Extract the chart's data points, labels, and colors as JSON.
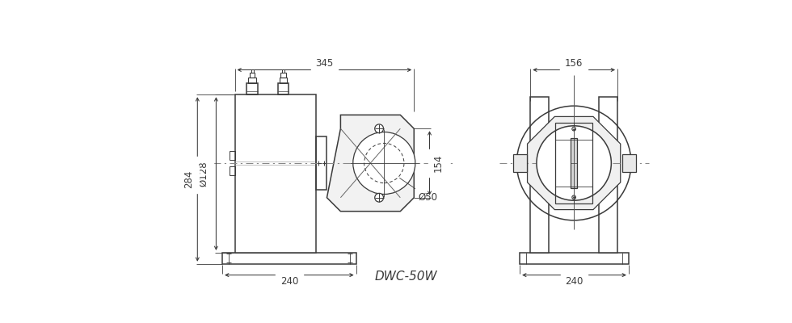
{
  "bg_color": "#ffffff",
  "line_color": "#3a3a3a",
  "dim_color": "#3a3a3a",
  "dash_color": "#888888",
  "title": "DWC-50W",
  "title_fontsize": 11,
  "dim_fontsize": 8.5,
  "fig_width": 9.8,
  "fig_height": 4.0,
  "annotations": {
    "dim_345": "345",
    "dim_156": "156",
    "dim_128": "Ø128",
    "dim_284": "284",
    "dim_154": "154",
    "dim_50": "Ø50",
    "dim_240_left": "240",
    "dim_240_right": "240"
  }
}
